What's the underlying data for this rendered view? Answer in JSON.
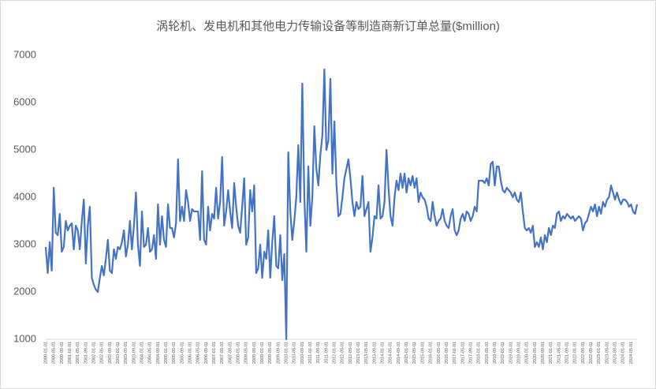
{
  "chart_data": {
    "type": "line",
    "title": "涡轮机、发电机和其他电力传输设备等制造商新订单总量($million)",
    "ylim": [
      1000,
      7000
    ],
    "yticks": [
      1000,
      2000,
      3000,
      4000,
      5000,
      6000,
      7000
    ],
    "grid": false,
    "categories": [
      "2000-01-01",
      null,
      null,
      null,
      "2000-05-01",
      null,
      null,
      null,
      "2000-09-01",
      null,
      null,
      null,
      "2001-01-01",
      null,
      null,
      null,
      "2001-05-01",
      null,
      null,
      null,
      "2001-09-01",
      null,
      null,
      null,
      "2002-01-01",
      null,
      null,
      null,
      "2002-05-01",
      null,
      null,
      null,
      "2002-09-01",
      null,
      null,
      null,
      "2003-01-01",
      null,
      null,
      null,
      "2003-05-01",
      null,
      null,
      null,
      "2003-09-01",
      null,
      null,
      null,
      "2004-01-01",
      null,
      null,
      null,
      "2004-05-01",
      null,
      null,
      null,
      "2004-09-01",
      null,
      null,
      null,
      "2005-01-01",
      null,
      null,
      null,
      "2005-05-01",
      null,
      null,
      null,
      "2005-09-01",
      null,
      null,
      null,
      "2006-01-01",
      null,
      null,
      null,
      "2006-05-01",
      null,
      null,
      null,
      "2006-09-01",
      null,
      null,
      null,
      "2007-01-01",
      null,
      null,
      null,
      "2007-05-01",
      null,
      null,
      null,
      "2007-09-01",
      null,
      null,
      null,
      "2008-01-01",
      null,
      null,
      null,
      "2008-05-01",
      null,
      null,
      null,
      "2008-09-01",
      null,
      null,
      null,
      "2009-01-01",
      null,
      null,
      null,
      "2009-05-01",
      null,
      null,
      null,
      "2009-09-01",
      null,
      null,
      null,
      "2010-01-01",
      null,
      null,
      null,
      "2010-05-01",
      null,
      null,
      null,
      "2010-09-01",
      null,
      null,
      null,
      "2011-01-01",
      null,
      null,
      null,
      "2011-05-01",
      null,
      null,
      null,
      "2011-09-01",
      null,
      null,
      null,
      "2012-01-01",
      null,
      null,
      null,
      "2012-05-01",
      null,
      null,
      null,
      "2012-09-01",
      null,
      null,
      null,
      "2013-01-01",
      null,
      null,
      null,
      "2013-05-01",
      null,
      null,
      null,
      "2013-09-01",
      null,
      null,
      null,
      "2014-01-01",
      null,
      null,
      null,
      "2014-05-01",
      null,
      null,
      null,
      "2014-09-01",
      null,
      null,
      null,
      "2015-01-01",
      null,
      null,
      null,
      "2015-05-01",
      null,
      null,
      null,
      "2015-09-01",
      null,
      null,
      null,
      "2016-01-01",
      null,
      null,
      null,
      "2016-05-01",
      null,
      null,
      null,
      "2016-09-01",
      null,
      null,
      null,
      "2017-01-01",
      null,
      null,
      null,
      "2017-05-01",
      null,
      null,
      null,
      "2017-09-01",
      null,
      null,
      null,
      "2018-01-01",
      null,
      null,
      null,
      "2018-05-01",
      null,
      null,
      null,
      "2018-09-01",
      null,
      null,
      null,
      "2019-01-01",
      null,
      null,
      null,
      "2019-05-01",
      null,
      null,
      null,
      "2019-09-01",
      null,
      null,
      null,
      "2020-01-01",
      null,
      null,
      null,
      "2020-05-01",
      null,
      null,
      null,
      "2020-09-01",
      null,
      null,
      null,
      "2021-01-01",
      null,
      null,
      null,
      "2021-05-01",
      null,
      null,
      null,
      "2021-09-01",
      null,
      null,
      null,
      "2022-01-01",
      null,
      null,
      null,
      "2022-05-01",
      null,
      null,
      null,
      "2022-09-01",
      null,
      null,
      null,
      "2023-01-01",
      null,
      null,
      null,
      "2023-05-01",
      null,
      null,
      null,
      "2023-09-01",
      null,
      null,
      null,
      "2024-01-01",
      null,
      null,
      null,
      "2024-05-01",
      null,
      null,
      null
    ],
    "series": [
      {
        "color": "#4472c4",
        "values": [
          2950,
          2400,
          3050,
          2450,
          4200,
          3250,
          3200,
          3650,
          2850,
          2950,
          3500,
          3300,
          3400,
          3450,
          2900,
          3400,
          3300,
          2900,
          3500,
          3950,
          2600,
          3400,
          3800,
          2300,
          2150,
          2050,
          2000,
          2300,
          2550,
          2350,
          2700,
          3100,
          2450,
          2400,
          2900,
          2700,
          2950,
          2900,
          3050,
          3300,
          2750,
          3000,
          3500,
          2900,
          3400,
          4100,
          3000,
          2550,
          3700,
          2950,
          3000,
          3350,
          2850,
          2900,
          3200,
          2700,
          3850,
          3000,
          3600,
          3100,
          2950,
          3850,
          3350,
          3350,
          3150,
          3450,
          4800,
          3500,
          3800,
          3500,
          4150,
          3900,
          3500,
          3750,
          3700,
          3700,
          3700,
          3100,
          4550,
          3100,
          3000,
          3800,
          3300,
          3650,
          3550,
          4200,
          3550,
          3900,
          4850,
          3400,
          3700,
          4150,
          3700,
          3350,
          4300,
          3800,
          3400,
          3250,
          3800,
          4400,
          3000,
          3150,
          4150,
          3700,
          4250,
          2400,
          2500,
          3000,
          2300,
          2850,
          2700,
          3300,
          2300,
          3050,
          3600,
          2550,
          2500,
          3200,
          2250,
          2800,
          1000,
          4950,
          3700,
          3100,
          3500,
          4000,
          5100,
          3900,
          6400,
          4000,
          2850,
          4650,
          3400,
          4000,
          5500,
          4600,
          4250,
          4900,
          5300,
          6700,
          5000,
          5200,
          6500,
          4500,
          5600,
          4300,
          3600,
          3650,
          4000,
          4400,
          4600,
          4800,
          4400,
          3900,
          3600,
          3900,
          3750,
          3800,
          4450,
          3600,
          3750,
          3900,
          2850,
          3150,
          3600,
          3550,
          4250,
          3550,
          3600,
          3900,
          5000,
          4200,
          3600,
          3400,
          4000,
          4350,
          4150,
          4500,
          4200,
          4500,
          4100,
          4400,
          4250,
          4450,
          4200,
          4400,
          3900,
          4100,
          4000,
          3950,
          3800,
          3550,
          3500,
          3900,
          3600,
          3400,
          3500,
          3550,
          3750,
          3500,
          3400,
          3350,
          3600,
          3750,
          3300,
          3200,
          3300,
          3550,
          3650,
          3500,
          3700,
          3650,
          3500,
          3600,
          3800,
          3700,
          4350,
          4350,
          4350,
          4300,
          4400,
          4250,
          4700,
          4750,
          4250,
          4650,
          4650,
          4350,
          4150,
          4100,
          4200,
          4150,
          4100,
          4000,
          4100,
          3950,
          3900,
          4100,
          3700,
          3350,
          3300,
          3350,
          3250,
          3400,
          2950,
          3050,
          2950,
          3150,
          2900,
          3200,
          3050,
          3350,
          3200,
          3400,
          3350,
          3650,
          3700,
          3500,
          3600,
          3550,
          3650,
          3600,
          3550,
          3600,
          3500,
          3550,
          3600,
          3550,
          3300,
          3450,
          3500,
          3650,
          3800,
          3700,
          3850,
          3600,
          3800,
          3650,
          3900,
          3800,
          3950,
          4000,
          4250,
          4100,
          3950,
          4100,
          3950,
          3850,
          3950,
          3950,
          3900,
          3800,
          3850,
          3700,
          3650,
          3850
        ]
      }
    ]
  }
}
